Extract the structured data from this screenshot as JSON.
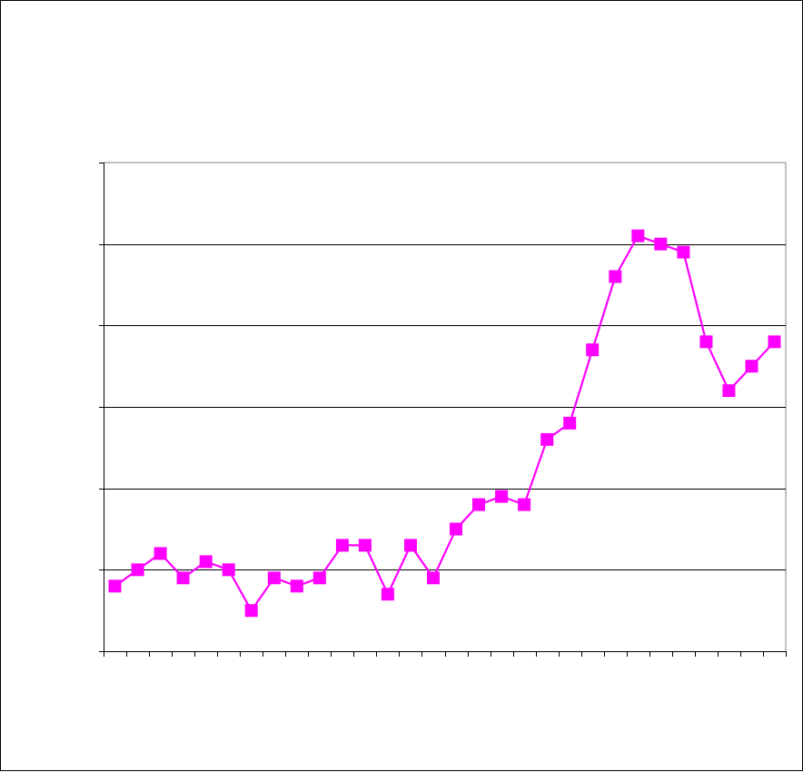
{
  "chart_data": {
    "type": "line",
    "title": "",
    "xlabel": "",
    "ylabel": "",
    "ylim": [
      0,
      6
    ],
    "y_gridlines": [
      1,
      2,
      3,
      4,
      5
    ],
    "grid": true,
    "legend": "none",
    "x": [
      1,
      2,
      3,
      4,
      5,
      6,
      7,
      8,
      9,
      10,
      11,
      12,
      13,
      14,
      15,
      16,
      17,
      18,
      19,
      20,
      21,
      22,
      23,
      24,
      25,
      26,
      27,
      28,
      29,
      30
    ],
    "series": [
      {
        "name": "",
        "color": "#ff00ff",
        "marker": "square",
        "values": [
          0.8,
          1.0,
          1.2,
          0.9,
          1.1,
          1.0,
          0.5,
          0.9,
          0.8,
          0.9,
          1.3,
          1.3,
          0.7,
          1.3,
          0.9,
          1.5,
          1.8,
          1.9,
          1.8,
          2.6,
          2.8,
          3.7,
          4.6,
          5.1,
          5.0,
          4.9,
          3.8,
          3.2,
          3.5,
          3.8
        ]
      }
    ]
  }
}
